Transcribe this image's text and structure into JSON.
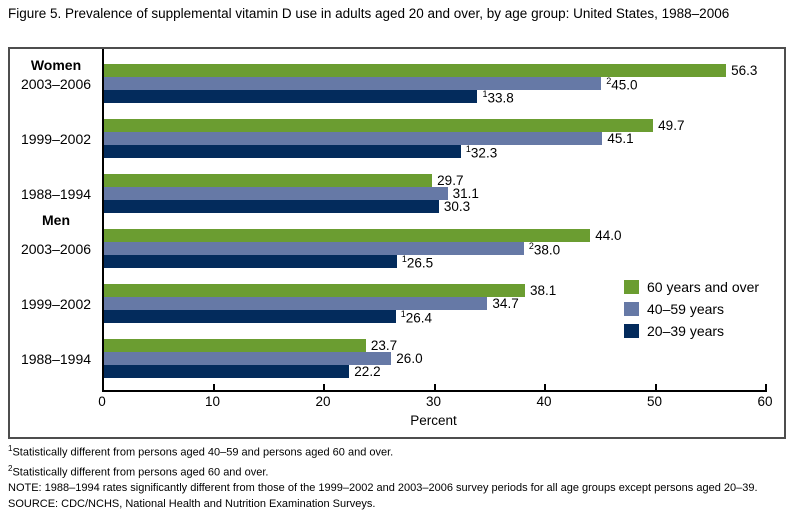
{
  "chart_data": {
    "type": "bar",
    "orientation": "horizontal",
    "title": "Figure 5. Prevalence of supplemental vitamin D use in adults aged 20 and over, by age group: United States, 1988–2006",
    "xlabel": "Percent",
    "xlim": [
      0,
      60
    ],
    "xticks": [
      0,
      10,
      20,
      30,
      40,
      50,
      60
    ],
    "grid": false,
    "legend_position": "inside-right",
    "legend": [
      {
        "label": "60 years and over",
        "color": "#6b9d31"
      },
      {
        "label": "40–59 years",
        "color": "#6679a6"
      },
      {
        "label": "20–39 years",
        "color": "#032b5c"
      }
    ],
    "groups": [
      {
        "section": "Women",
        "section_offset": -8,
        "period": "2003–2006",
        "bars": [
          {
            "series": "60 years and over",
            "value": 56.3,
            "display": "56.3",
            "sup": ""
          },
          {
            "series": "40–59 years",
            "value": 45.0,
            "display": "45.0",
            "sup": "2"
          },
          {
            "series": "20–39 years",
            "value": 33.8,
            "display": "33.8",
            "sup": "1"
          }
        ]
      },
      {
        "section": "",
        "period": "1999–2002",
        "bars": [
          {
            "series": "60 years and over",
            "value": 49.7,
            "display": "49.7",
            "sup": ""
          },
          {
            "series": "40–59 years",
            "value": 45.1,
            "display": "45.1",
            "sup": ""
          },
          {
            "series": "20–39 years",
            "value": 32.3,
            "display": "32.3",
            "sup": "1"
          }
        ]
      },
      {
        "section": "",
        "period": "1988–1994",
        "bars": [
          {
            "series": "60 years and over",
            "value": 29.7,
            "display": "29.7",
            "sup": ""
          },
          {
            "series": "40–59 years",
            "value": 31.1,
            "display": "31.1",
            "sup": ""
          },
          {
            "series": "20–39 years",
            "value": 30.3,
            "display": "30.3",
            "sup": ""
          }
        ]
      },
      {
        "section": "Men",
        "section_offset": -18,
        "period": "2003–2006",
        "bars": [
          {
            "series": "60 years and over",
            "value": 44.0,
            "display": "44.0",
            "sup": ""
          },
          {
            "series": "40–59 years",
            "value": 38.0,
            "display": "38.0",
            "sup": "2"
          },
          {
            "series": "20–39 years",
            "value": 26.5,
            "display": "26.5",
            "sup": "1"
          }
        ]
      },
      {
        "section": "",
        "period": "1999–2002",
        "bars": [
          {
            "series": "60 years and over",
            "value": 38.1,
            "display": "38.1",
            "sup": ""
          },
          {
            "series": "40–59 years",
            "value": 34.7,
            "display": "34.7",
            "sup": ""
          },
          {
            "series": "20–39 years",
            "value": 26.4,
            "display": "26.4",
            "sup": "1"
          }
        ]
      },
      {
        "section": "",
        "period": "1988–1994",
        "bars": [
          {
            "series": "60 years and over",
            "value": 23.7,
            "display": "23.7",
            "sup": ""
          },
          {
            "series": "40–59 years",
            "value": 26.0,
            "display": "26.0",
            "sup": ""
          },
          {
            "series": "20–39 years",
            "value": 22.2,
            "display": "22.2",
            "sup": ""
          }
        ]
      }
    ]
  },
  "footnotes": [
    {
      "sup": "1",
      "text": "Statistically different from persons aged 40–59 and persons aged 60 and over."
    },
    {
      "sup": "2",
      "text": "Statistically different from persons aged 60 and over."
    },
    {
      "sup": "",
      "text": "NOTE: 1988–1994 rates significantly different from those of the 1999–2002 and 2003–2006 survey periods for all age groups except persons aged 20–39."
    },
    {
      "sup": "",
      "text": "SOURCE: CDC/NCHS, National Health and Nutrition Examination Surveys."
    }
  ]
}
